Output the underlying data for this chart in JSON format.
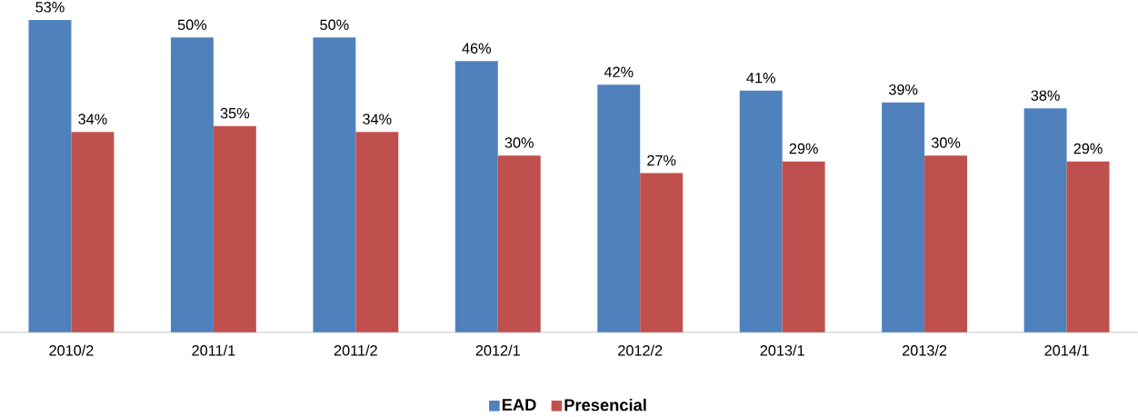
{
  "chart_data": {
    "type": "bar",
    "categories": [
      "2010/2",
      "2011/1",
      "2011/2",
      "2012/1",
      "2012/2",
      "2013/1",
      "2013/2",
      "2014/1"
    ],
    "series": [
      {
        "name": "EAD",
        "color": "#4f81bd",
        "values": [
          53,
          50,
          50,
          46,
          42,
          41,
          39,
          38
        ],
        "value_labels": [
          "53%",
          "50%",
          "50%",
          "46%",
          "42%",
          "41%",
          "39%",
          "38%"
        ]
      },
      {
        "name": "Presencial",
        "color": "#c0504d",
        "values": [
          34,
          35,
          34,
          30,
          27,
          29,
          30,
          29
        ],
        "value_labels": [
          "34%",
          "35%",
          "34%",
          "30%",
          "27%",
          "29%",
          "30%",
          "29%"
        ]
      }
    ],
    "legend": "bottom"
  }
}
